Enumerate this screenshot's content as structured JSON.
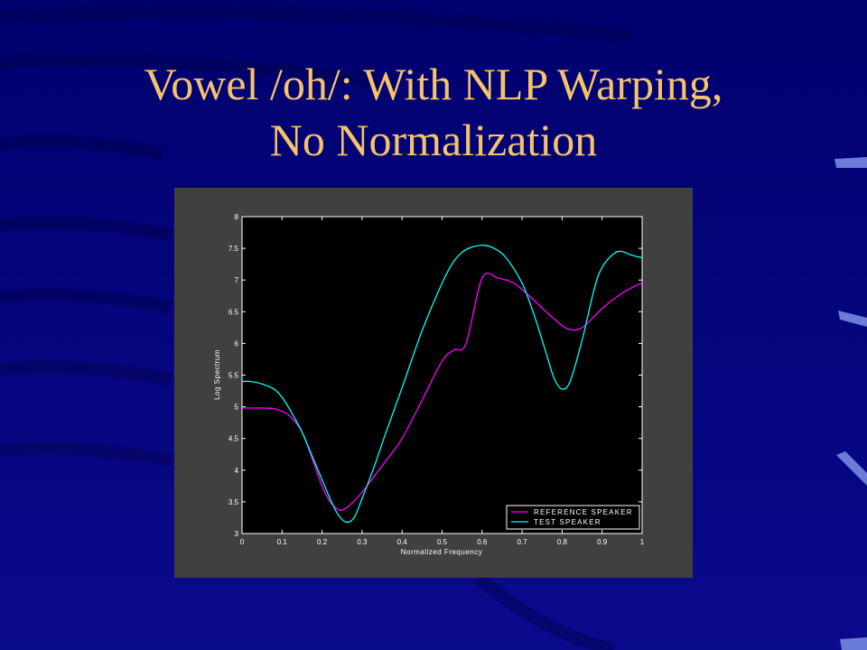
{
  "slide": {
    "title_line1": "Vowel /oh/: With NLP Warping,",
    "title_line2": "No Normalization",
    "colors": {
      "background": "#000080",
      "title": "#F5C36A",
      "figure_panel": "#404040",
      "plot_area": "#000000",
      "accent_stripes": "#6A7CD8"
    }
  },
  "chart_data": {
    "type": "line",
    "title": "",
    "xlabel": "Normalized Frequency",
    "ylabel": "Log Spectrum",
    "xlim": [
      0,
      1
    ],
    "ylim": [
      3,
      8
    ],
    "x_ticks": [
      "0",
      "0.1",
      "0.2",
      "0.3",
      "0.4",
      "0.5",
      "0.6",
      "0.7",
      "0.8",
      "0.9",
      "1"
    ],
    "y_ticks": [
      "3",
      "3.5",
      "4",
      "4.5",
      "5",
      "5.5",
      "6",
      "6.5",
      "7",
      "7.5",
      "8"
    ],
    "grid": false,
    "legend_position": "bottom-right",
    "series": [
      {
        "name": "REFERENCE SPEAKER",
        "color": "#FF00FF",
        "x": [
          0,
          0.02,
          0.05,
          0.08,
          0.1,
          0.12,
          0.15,
          0.18,
          0.2,
          0.22,
          0.24,
          0.25,
          0.27,
          0.3,
          0.33,
          0.36,
          0.4,
          0.45,
          0.5,
          0.53,
          0.56,
          0.6,
          0.64,
          0.68,
          0.7,
          0.73,
          0.76,
          0.8,
          0.82,
          0.84,
          0.86,
          0.9,
          0.94,
          0.98,
          1
        ],
        "values": [
          4.98,
          4.98,
          4.98,
          4.97,
          4.93,
          4.85,
          4.6,
          4.1,
          3.75,
          3.5,
          3.38,
          3.37,
          3.45,
          3.65,
          3.9,
          4.15,
          4.5,
          5.1,
          5.72,
          5.9,
          6.0,
          7.03,
          7.03,
          6.95,
          6.85,
          6.68,
          6.5,
          6.28,
          6.22,
          6.22,
          6.3,
          6.55,
          6.75,
          6.9,
          6.95
        ]
      },
      {
        "name": "TEST SPEAKER",
        "color": "#00FFFF",
        "x": [
          0,
          0.02,
          0.05,
          0.08,
          0.1,
          0.12,
          0.15,
          0.18,
          0.2,
          0.22,
          0.24,
          0.26,
          0.28,
          0.3,
          0.33,
          0.36,
          0.4,
          0.45,
          0.5,
          0.53,
          0.56,
          0.6,
          0.63,
          0.66,
          0.7,
          0.73,
          0.76,
          0.78,
          0.8,
          0.82,
          0.85,
          0.88,
          0.9,
          0.93,
          0.95,
          0.97,
          1
        ],
        "values": [
          5.4,
          5.4,
          5.36,
          5.28,
          5.15,
          4.95,
          4.6,
          4.15,
          3.85,
          3.55,
          3.3,
          3.18,
          3.25,
          3.55,
          4.05,
          4.6,
          5.3,
          6.2,
          6.95,
          7.3,
          7.48,
          7.55,
          7.5,
          7.35,
          6.95,
          6.45,
          5.85,
          5.45,
          5.28,
          5.4,
          6.05,
          6.85,
          7.2,
          7.42,
          7.45,
          7.4,
          7.35
        ]
      }
    ]
  }
}
